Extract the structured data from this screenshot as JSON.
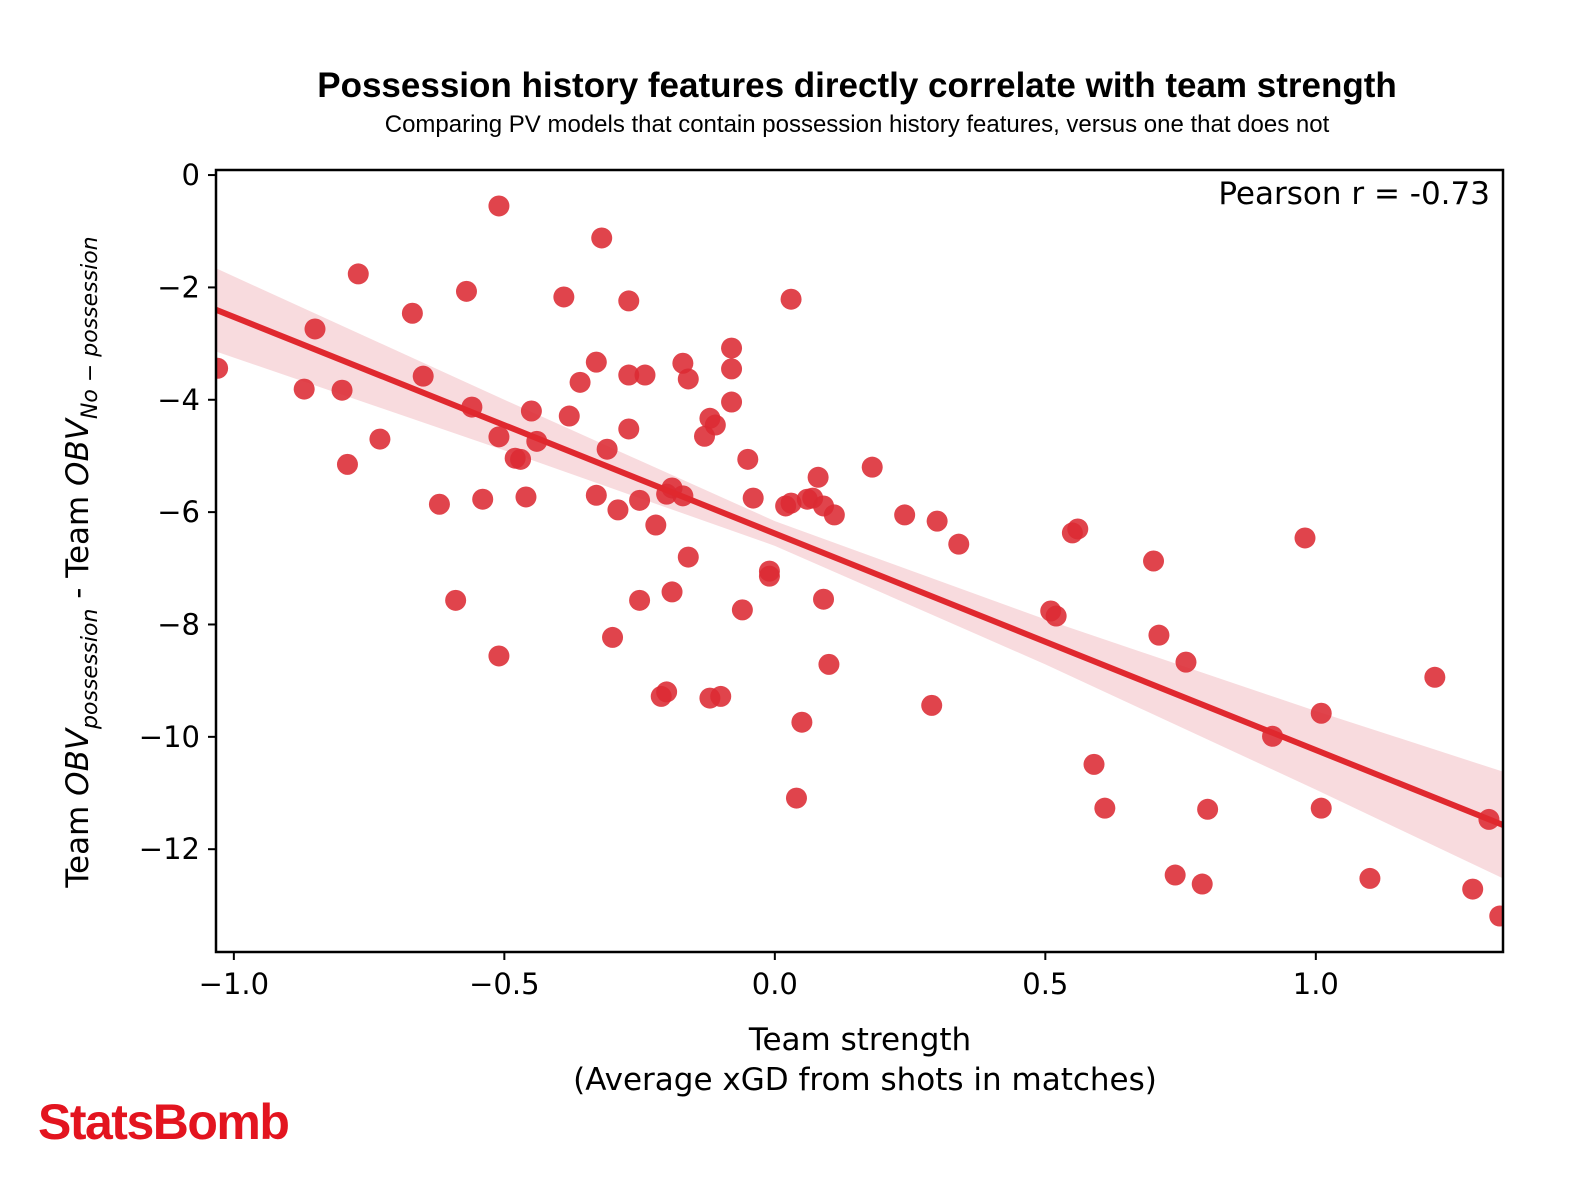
{
  "chart_data": {
    "type": "scatter",
    "title": "Possession history features directly correlate with team strength",
    "subtitle": "Comparing PV models that contain possession history features, versus one that does not",
    "xlabel": "Team strength",
    "xlabel_line2": "(Average xGD from shots in matches)",
    "ylabel": {
      "pre": "Team ",
      "obv1": "OBV",
      "sub1": "possession",
      "mid": " - Team ",
      "obv2": "OBV",
      "sub2": "No − possession"
    },
    "annotation": "Pearson r = -0.73",
    "xlim": [
      -1.033,
      1.346
    ],
    "ylim": [
      -13.83,
      0.09
    ],
    "xticks": [
      {
        "v": -1.0,
        "label": "−1.0"
      },
      {
        "v": -0.5,
        "label": "−0.5"
      },
      {
        "v": 0.0,
        "label": "0.0"
      },
      {
        "v": 0.5,
        "label": "0.5"
      },
      {
        "v": 1.0,
        "label": "1.0"
      }
    ],
    "yticks": [
      {
        "v": 0,
        "label": "0"
      },
      {
        "v": -2,
        "label": "−2"
      },
      {
        "v": -4,
        "label": "−4"
      },
      {
        "v": -6,
        "label": "−6"
      },
      {
        "v": -8,
        "label": "−8"
      },
      {
        "v": -10,
        "label": "−10"
      },
      {
        "v": -12,
        "label": "−12"
      }
    ],
    "grid": false,
    "point_color": "#dc2a33",
    "line_color": "#e0282e",
    "band_color": "#f4c7cc",
    "regression": {
      "slope": -3.855,
      "intercept": -6.38
    },
    "ci_band": [
      [
        -1.033,
        -3.14,
        -1.66
      ],
      [
        -0.5,
        -4.9,
        -4.0
      ],
      [
        0.0,
        -6.6,
        -6.16
      ],
      [
        0.5,
        -8.71,
        -7.91
      ],
      [
        1.0,
        -10.94,
        -9.54
      ],
      [
        1.346,
        -12.52,
        -10.62
      ]
    ],
    "points": [
      [
        -1.03,
        -3.44
      ],
      [
        -0.51,
        -0.55
      ],
      [
        -0.32,
        -1.12
      ],
      [
        -0.77,
        -1.76
      ],
      [
        -0.57,
        -2.07
      ],
      [
        -0.39,
        -2.17
      ],
      [
        -0.27,
        -2.24
      ],
      [
        0.03,
        -2.21
      ],
      [
        -0.85,
        -2.74
      ],
      [
        -0.67,
        -2.46
      ],
      [
        -0.33,
        -3.33
      ],
      [
        -0.27,
        -3.56
      ],
      [
        -0.24,
        -3.56
      ],
      [
        -0.36,
        -3.69
      ],
      [
        -0.17,
        -3.35
      ],
      [
        -0.16,
        -3.63
      ],
      [
        -0.08,
        -3.08
      ],
      [
        -0.08,
        -3.45
      ],
      [
        -0.87,
        -3.81
      ],
      [
        -0.8,
        -3.83
      ],
      [
        -0.65,
        -3.58
      ],
      [
        -0.56,
        -4.13
      ],
      [
        -0.45,
        -4.2
      ],
      [
        -0.38,
        -4.29
      ],
      [
        -0.08,
        -4.04
      ],
      [
        -0.12,
        -4.33
      ],
      [
        -0.11,
        -4.45
      ],
      [
        -0.13,
        -4.65
      ],
      [
        -0.27,
        -4.52
      ],
      [
        -0.51,
        -4.66
      ],
      [
        -0.44,
        -4.74
      ],
      [
        -0.73,
        -4.7
      ],
      [
        -0.79,
        -5.15
      ],
      [
        -0.48,
        -5.04
      ],
      [
        -0.47,
        -5.06
      ],
      [
        -0.31,
        -4.88
      ],
      [
        -0.05,
        -5.06
      ],
      [
        0.18,
        -5.2
      ],
      [
        -0.62,
        -5.86
      ],
      [
        -0.54,
        -5.77
      ],
      [
        -0.46,
        -5.73
      ],
      [
        -0.33,
        -5.7
      ],
      [
        -0.29,
        -5.96
      ],
      [
        -0.25,
        -5.79
      ],
      [
        -0.2,
        -5.68
      ],
      [
        -0.19,
        -5.57
      ],
      [
        -0.17,
        -5.71
      ],
      [
        -0.04,
        -5.75
      ],
      [
        0.02,
        -5.89
      ],
      [
        0.03,
        -5.84
      ],
      [
        0.06,
        -5.77
      ],
      [
        0.08,
        -5.38
      ],
      [
        0.07,
        -5.75
      ],
      [
        0.09,
        -5.89
      ],
      [
        0.11,
        -6.05
      ],
      [
        0.24,
        -6.05
      ],
      [
        0.3,
        -6.16
      ],
      [
        0.34,
        -6.57
      ],
      [
        -0.22,
        -6.23
      ],
      [
        -0.16,
        -6.8
      ],
      [
        -0.01,
        -7.14
      ],
      [
        -0.01,
        -7.05
      ],
      [
        0.55,
        -6.37
      ],
      [
        0.56,
        -6.3
      ],
      [
        0.7,
        -6.87
      ],
      [
        0.98,
        -6.46
      ],
      [
        -0.59,
        -7.57
      ],
      [
        -0.25,
        -7.57
      ],
      [
        -0.19,
        -7.42
      ],
      [
        -0.06,
        -7.74
      ],
      [
        0.09,
        -7.55
      ],
      [
        0.51,
        -7.76
      ],
      [
        0.52,
        -7.85
      ],
      [
        -0.3,
        -8.23
      ],
      [
        -0.51,
        -8.56
      ],
      [
        0.71,
        -8.19
      ],
      [
        0.76,
        -8.67
      ],
      [
        0.1,
        -8.71
      ],
      [
        1.22,
        -8.94
      ],
      [
        -0.21,
        -9.28
      ],
      [
        -0.2,
        -9.2
      ],
      [
        -0.12,
        -9.31
      ],
      [
        -0.1,
        -9.28
      ],
      [
        0.29,
        -9.44
      ],
      [
        0.05,
        -9.74
      ],
      [
        1.01,
        -9.58
      ],
      [
        0.92,
        -9.99
      ],
      [
        0.59,
        -10.49
      ],
      [
        0.04,
        -11.09
      ],
      [
        0.61,
        -11.27
      ],
      [
        0.8,
        -11.29
      ],
      [
        1.01,
        -11.27
      ],
      [
        0.74,
        -12.46
      ],
      [
        0.79,
        -12.62
      ],
      [
        1.1,
        -12.52
      ],
      [
        1.29,
        -12.71
      ],
      [
        1.32,
        -11.47
      ],
      [
        1.34,
        -13.19
      ]
    ]
  },
  "branding": {
    "logo": "StatsBomb"
  }
}
